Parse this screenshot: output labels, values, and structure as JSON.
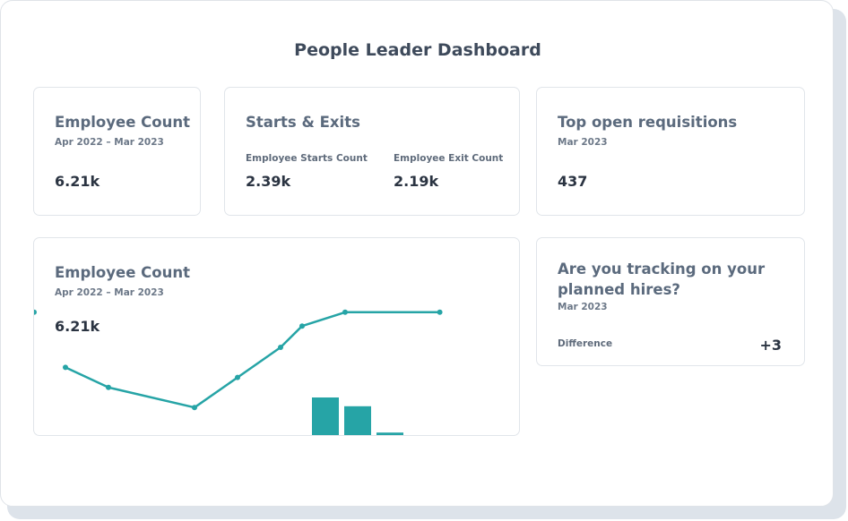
{
  "page_title": "People Leader Dashboard",
  "cards": {
    "employee_count": {
      "title": "Employee Count",
      "subtitle": "Apr 2022 – Mar 2023",
      "value": "6.21k"
    },
    "starts_exits": {
      "title": "Starts & Exits",
      "starts_label": "Employee Starts Count",
      "starts_value": "2.39k",
      "exits_label": "Employee Exit Count",
      "exits_value": "2.19k"
    },
    "requisitions": {
      "title": "Top open requisitions",
      "subtitle": "Mar 2023",
      "value": "437"
    },
    "trend": {
      "title": "Employee Count",
      "subtitle": "Apr 2022 – Mar 2023",
      "value": "6.21k"
    },
    "planned_hires": {
      "title_line1": "Are you tracking on your",
      "title_line2": "planned hires?",
      "subtitle": "Mar 2023",
      "difference_label": "Difference",
      "difference_value": "+3"
    }
  },
  "colors": {
    "accent": "#26a4a6",
    "title": "#3e4a5b",
    "card_border": "#e1e5ea"
  },
  "chart_data": {
    "type": "line",
    "title": "",
    "xlabel": "",
    "ylabel": "",
    "grid": false,
    "ylim": [
      0,
      100
    ],
    "series": [
      {
        "values": [
          54,
          38,
          22,
          46,
          70,
          87,
          98,
          98,
          null,
          null,
          98
        ]
      }
    ],
    "x": [
      0,
      1,
      2,
      3,
      4,
      5,
      6,
      7,
      8,
      9,
      10
    ],
    "x_positions_index": [
      0,
      1,
      3,
      4,
      5,
      5.5,
      6.5,
      8.7
    ],
    "bars": {
      "values": [
        30,
        23,
        2
      ]
    }
  }
}
